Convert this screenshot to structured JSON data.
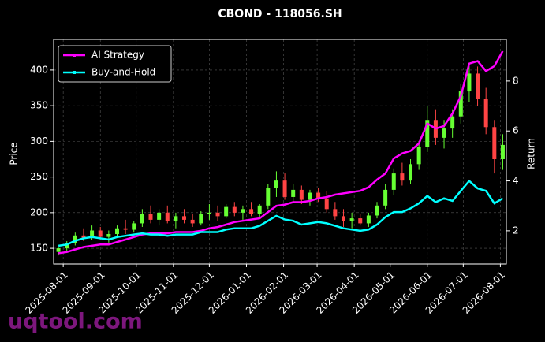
{
  "chart_data": {
    "type": "candlestick",
    "title": "CBOND - 118056.SH",
    "ylabel": "Price",
    "y2label": "Return",
    "watermark": "uqtool.com",
    "x": [
      "2025-07-28",
      "2025-08-04",
      "2025-08-11",
      "2025-08-18",
      "2025-08-25",
      "2025-09-01",
      "2025-09-08",
      "2025-09-15",
      "2025-09-22",
      "2025-09-29",
      "2025-10-06",
      "2025-10-13",
      "2025-10-20",
      "2025-10-27",
      "2025-11-03",
      "2025-11-10",
      "2025-11-17",
      "2025-11-24",
      "2025-12-01",
      "2025-12-08",
      "2025-12-15",
      "2025-12-22",
      "2025-12-29",
      "2026-01-05",
      "2026-01-12",
      "2026-01-19",
      "2026-01-26",
      "2026-02-02",
      "2026-02-09",
      "2026-02-16",
      "2026-02-23",
      "2026-03-02",
      "2026-03-09",
      "2026-03-16",
      "2026-03-23",
      "2026-03-30",
      "2026-04-06",
      "2026-04-13",
      "2026-04-20",
      "2026-04-27",
      "2026-05-04",
      "2026-05-11",
      "2026-05-18",
      "2026-05-25",
      "2026-06-01",
      "2026-06-08",
      "2026-06-15",
      "2026-06-22",
      "2026-06-29",
      "2026-07-06",
      "2026-07-13",
      "2026-07-20",
      "2026-07-27",
      "2026-08-03"
    ],
    "open": [
      145,
      150,
      157,
      168,
      165,
      175,
      166,
      170,
      178,
      176,
      185,
      198,
      190,
      200,
      188,
      195,
      190,
      185,
      198,
      200,
      195,
      208,
      200,
      205,
      198,
      210,
      235,
      245,
      222,
      232,
      218,
      228,
      220,
      205,
      195,
      188,
      192,
      185,
      196,
      210,
      232,
      255,
      245,
      268,
      292,
      330,
      305,
      318,
      335,
      370,
      395,
      360,
      320,
      275
    ],
    "high": [
      152,
      160,
      172,
      178,
      182,
      180,
      175,
      182,
      190,
      188,
      205,
      210,
      205,
      210,
      200,
      205,
      198,
      202,
      212,
      210,
      212,
      215,
      210,
      215,
      212,
      240,
      258,
      255,
      240,
      238,
      232,
      235,
      230,
      215,
      205,
      200,
      198,
      200,
      215,
      240,
      262,
      270,
      275,
      300,
      350,
      345,
      330,
      345,
      380,
      410,
      405,
      375,
      330,
      310
    ],
    "low": [
      140,
      146,
      154,
      160,
      162,
      162,
      158,
      165,
      170,
      172,
      180,
      185,
      182,
      185,
      178,
      185,
      180,
      182,
      190,
      188,
      192,
      195,
      190,
      195,
      192,
      205,
      222,
      218,
      215,
      212,
      210,
      215,
      200,
      190,
      180,
      178,
      182,
      180,
      192,
      205,
      225,
      238,
      240,
      260,
      285,
      295,
      290,
      305,
      325,
      355,
      350,
      310,
      255,
      260
    ],
    "close": [
      150,
      157,
      168,
      165,
      175,
      166,
      170,
      178,
      176,
      185,
      198,
      190,
      200,
      188,
      195,
      190,
      185,
      198,
      200,
      195,
      208,
      200,
      205,
      198,
      210,
      235,
      245,
      222,
      232,
      218,
      228,
      220,
      205,
      195,
      188,
      192,
      185,
      196,
      210,
      232,
      255,
      245,
      268,
      292,
      330,
      305,
      318,
      335,
      370,
      395,
      360,
      320,
      275,
      295
    ],
    "up_color": "#66ff33",
    "down_color": "#ff4444",
    "series": [
      {
        "name": "AI Strategy",
        "color": "#ff00ff",
        "axis": "y2",
        "values": [
          1.1,
          1.15,
          1.25,
          1.35,
          1.4,
          1.45,
          1.45,
          1.55,
          1.65,
          1.75,
          1.85,
          1.9,
          1.9,
          1.9,
          1.95,
          1.95,
          1.95,
          2.0,
          2.1,
          2.15,
          2.25,
          2.35,
          2.4,
          2.45,
          2.5,
          2.75,
          3.0,
          3.05,
          3.15,
          3.15,
          3.2,
          3.3,
          3.35,
          3.45,
          3.5,
          3.55,
          3.6,
          3.75,
          4.05,
          4.3,
          4.9,
          5.1,
          5.2,
          5.5,
          6.3,
          6.1,
          6.2,
          6.7,
          7.4,
          8.7,
          8.8,
          8.4,
          8.6,
          9.2
        ]
      },
      {
        "name": "Buy-and-Hold",
        "color": "#00ffff",
        "axis": "y2",
        "values": [
          1.4,
          1.45,
          1.6,
          1.7,
          1.75,
          1.7,
          1.65,
          1.75,
          1.8,
          1.85,
          1.9,
          1.85,
          1.85,
          1.8,
          1.85,
          1.85,
          1.85,
          1.95,
          1.95,
          1.95,
          2.05,
          2.1,
          2.1,
          2.1,
          2.2,
          2.4,
          2.6,
          2.45,
          2.4,
          2.25,
          2.3,
          2.35,
          2.3,
          2.2,
          2.1,
          2.05,
          2.0,
          2.05,
          2.25,
          2.55,
          2.75,
          2.75,
          2.9,
          3.1,
          3.4,
          3.15,
          3.3,
          3.2,
          3.6,
          4.0,
          3.7,
          3.6,
          3.1,
          3.3
        ]
      }
    ],
    "xlim": [
      "2025-07-24",
      "2026-08-06"
    ],
    "xticks": [
      "2025-08-01",
      "2025-09-01",
      "2025-10-01",
      "2025-11-01",
      "2025-12-01",
      "2026-01-01",
      "2026-02-01",
      "2026-03-01",
      "2026-04-01",
      "2026-05-01",
      "2026-06-01",
      "2026-07-01",
      "2026-08-01"
    ],
    "ylim": [
      128,
      443
    ],
    "yticks": [
      150,
      200,
      250,
      300,
      350,
      400
    ],
    "y2lim": [
      0.67,
      9.67
    ],
    "y2ticks": [
      2,
      4,
      6,
      8
    ],
    "grid": true,
    "legend": "upper left"
  }
}
